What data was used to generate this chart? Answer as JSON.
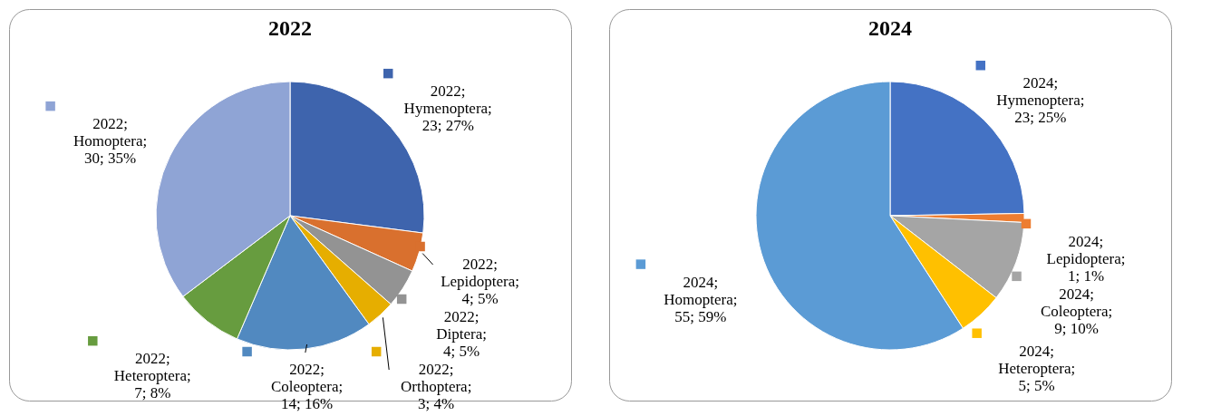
{
  "chart_data": [
    {
      "type": "pie",
      "title": "2022",
      "categories": [
        null,
        null,
        null,
        null,
        null,
        null,
        null
      ],
      "values": [
        23,
        4,
        4,
        3,
        14,
        7,
        30
      ],
      "colors": [
        "#3e64ad",
        "#d9702e",
        "#939393",
        "#e6ae00",
        "#5189c0",
        "#679c3f",
        "#8fa4d5"
      ],
      "value_labels": [
        "2022; Hymenoptera; 23; 27%",
        "2022; Lepidoptera; 4; 5%",
        "2022; Diptera; 4; 5%",
        "2022; Orthoptera; 3; 4%",
        "2022; Coleoptera; 14; 16%",
        "2022; Heteroptera; 7; 8%",
        "2022; Homoptera; 30; 35%"
      ]
    },
    {
      "type": "pie",
      "title": "2024",
      "categories": [
        null,
        null,
        null,
        null,
        null
      ],
      "values": [
        23,
        1,
        9,
        5,
        55
      ],
      "colors": [
        "#4472c4",
        "#ed7d31",
        "#a5a5a5",
        "#ffc000",
        "#5b9bd5"
      ],
      "value_labels": [
        "2024; Hymenoptera; 23; 25%",
        "2024; Lepidoptera; 1; 1%",
        "2024; Coleoptera; 9; 10%",
        "2024; Heteroptera; 5; 5%",
        "2024; Homoptera; 55; 59%"
      ]
    }
  ]
}
